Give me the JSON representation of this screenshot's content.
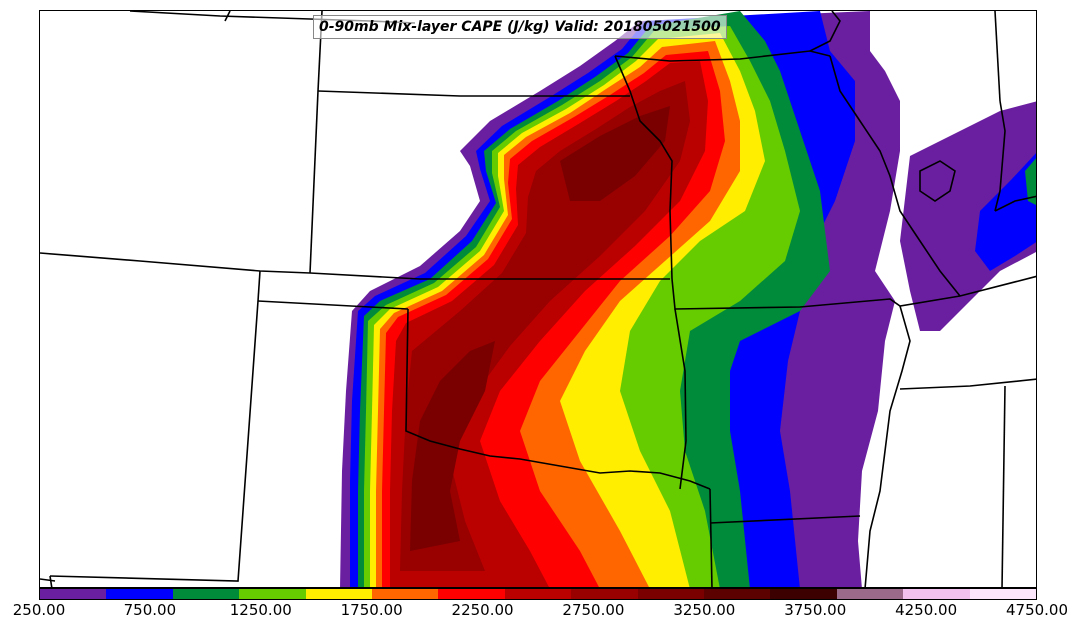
{
  "title": {
    "prefix": "0-90mb Mix-layer CAPE (J/kg) Valid:",
    "valid_time": "201805021500"
  },
  "colorbar": {
    "colors": [
      "#6a1fa0",
      "#0000ff",
      "#008b3a",
      "#66cc00",
      "#ffee00",
      "#ff6600",
      "#ff0000",
      "#bb0000",
      "#990000",
      "#7a0000",
      "#5c0000",
      "#3d0000",
      "#9b6a8a",
      "#f2c1ee",
      "#fbe6fb"
    ],
    "tick_labels": [
      "250.00",
      "750.00",
      "1250.00",
      "1750.00",
      "2250.00",
      "2750.00",
      "3250.00",
      "3750.00",
      "4250.00",
      "4750.00"
    ]
  }
}
